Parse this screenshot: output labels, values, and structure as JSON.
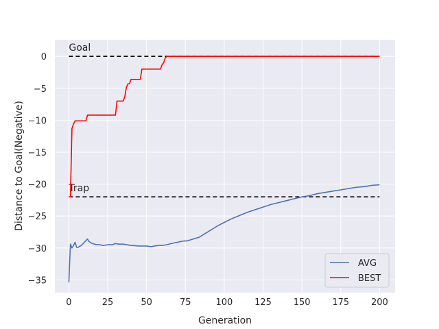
{
  "chart_data": {
    "type": "line",
    "title": "",
    "xlabel": "Generation",
    "ylabel": "Distance to Goal(Negative)",
    "xlim": [
      -9,
      210
    ],
    "ylim": [
      -37,
      2.6
    ],
    "xticks": [
      0,
      25,
      50,
      75,
      100,
      125,
      150,
      175,
      200
    ],
    "yticks": [
      0,
      -5,
      -10,
      -15,
      -20,
      -25,
      -30,
      -35
    ],
    "grid": true,
    "legend_position": "bottom-right",
    "reference_lines": [
      {
        "label": "Goal",
        "y": 0,
        "x_range": [
          0,
          200
        ],
        "color": "#000000",
        "style": "dashed"
      },
      {
        "label": "Trap",
        "y": -22,
        "x_range": [
          0,
          200
        ],
        "color": "#000000",
        "style": "dashed"
      }
    ],
    "series": [
      {
        "name": "AVG",
        "color": "#4c72b0",
        "points": [
          [
            0,
            -35.4
          ],
          [
            1,
            -29.4
          ],
          [
            2,
            -30.0
          ],
          [
            3,
            -29.6
          ],
          [
            4,
            -29.1
          ],
          [
            5,
            -29.9
          ],
          [
            6,
            -29.9
          ],
          [
            8,
            -29.6
          ],
          [
            10,
            -29.1
          ],
          [
            12,
            -28.6
          ],
          [
            13,
            -29.0
          ],
          [
            15,
            -29.3
          ],
          [
            18,
            -29.5
          ],
          [
            20,
            -29.5
          ],
          [
            22,
            -29.6
          ],
          [
            25,
            -29.5
          ],
          [
            28,
            -29.5
          ],
          [
            30,
            -29.3
          ],
          [
            32,
            -29.4
          ],
          [
            35,
            -29.4
          ],
          [
            40,
            -29.6
          ],
          [
            45,
            -29.7
          ],
          [
            50,
            -29.7
          ],
          [
            53,
            -29.8
          ],
          [
            55,
            -29.7
          ],
          [
            58,
            -29.6
          ],
          [
            60,
            -29.6
          ],
          [
            63,
            -29.5
          ],
          [
            66,
            -29.3
          ],
          [
            70,
            -29.1
          ],
          [
            74,
            -28.9
          ],
          [
            76,
            -28.9
          ],
          [
            80,
            -28.6
          ],
          [
            84,
            -28.3
          ],
          [
            88,
            -27.7
          ],
          [
            92,
            -27.1
          ],
          [
            96,
            -26.5
          ],
          [
            100,
            -26.0
          ],
          [
            105,
            -25.4
          ],
          [
            110,
            -24.9
          ],
          [
            115,
            -24.4
          ],
          [
            120,
            -24.0
          ],
          [
            125,
            -23.6
          ],
          [
            130,
            -23.2
          ],
          [
            135,
            -22.9
          ],
          [
            140,
            -22.6
          ],
          [
            145,
            -22.3
          ],
          [
            150,
            -22.0
          ],
          [
            155,
            -21.8
          ],
          [
            160,
            -21.5
          ],
          [
            165,
            -21.3
          ],
          [
            170,
            -21.1
          ],
          [
            175,
            -20.9
          ],
          [
            180,
            -20.7
          ],
          [
            185,
            -20.5
          ],
          [
            190,
            -20.4
          ],
          [
            195,
            -20.2
          ],
          [
            200,
            -20.1
          ]
        ]
      },
      {
        "name": "BEST",
        "color": "#ff0000",
        "points": [
          [
            0,
            -22.0
          ],
          [
            1,
            -22.0
          ],
          [
            2,
            -11.3
          ],
          [
            3,
            -10.6
          ],
          [
            4,
            -10.1
          ],
          [
            11,
            -10.1
          ],
          [
            12,
            -9.2
          ],
          [
            30,
            -9.2
          ],
          [
            31,
            -7.0
          ],
          [
            35,
            -7.0
          ],
          [
            36,
            -6.3
          ],
          [
            37,
            -4.9
          ],
          [
            38,
            -4.3
          ],
          [
            39,
            -4.3
          ],
          [
            40,
            -3.6
          ],
          [
            46,
            -3.6
          ],
          [
            47,
            -2.0
          ],
          [
            59,
            -2.0
          ],
          [
            60,
            -1.3
          ],
          [
            61,
            -1.0
          ],
          [
            62,
            -0.3
          ],
          [
            63,
            0.0
          ],
          [
            200,
            0.0
          ]
        ]
      }
    ]
  }
}
